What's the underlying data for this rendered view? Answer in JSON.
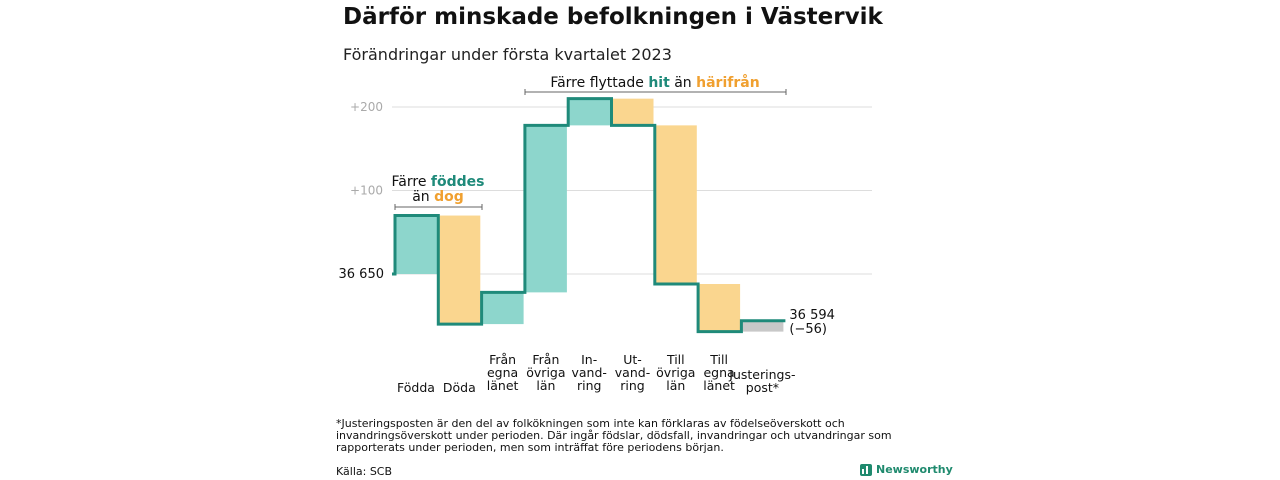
{
  "header": {
    "title": "Därför minskade befolkningen i Västervik",
    "subtitle": "Förändringar under första kvartalet 2023"
  },
  "chart_data": {
    "type": "waterfall",
    "start": {
      "label": "36 650",
      "value": 36650
    },
    "end": {
      "label": "36 594",
      "change_label": "(−56)",
      "value": 36594
    },
    "yticks": [
      {
        "label": "+100",
        "value": 100
      },
      {
        "label": "+200",
        "value": 200
      }
    ],
    "steps": [
      {
        "name": "Födda",
        "label_lines": [
          "Födda"
        ],
        "delta": 70,
        "kind": "in"
      },
      {
        "name": "Döda",
        "label_lines": [
          "Döda"
        ],
        "delta": -130,
        "kind": "out"
      },
      {
        "name": "Från egna länet",
        "label_lines": [
          "Från",
          "egna",
          "länet"
        ],
        "delta": 38,
        "kind": "in"
      },
      {
        "name": "Från övriga län",
        "label_lines": [
          "Från",
          "övriga",
          "län"
        ],
        "delta": 200,
        "kind": "in"
      },
      {
        "name": "Invandring",
        "label_lines": [
          "In-",
          "vand-",
          "ring"
        ],
        "delta": 32,
        "kind": "in"
      },
      {
        "name": "Utvandring",
        "label_lines": [
          "Ut-",
          "vand-",
          "ring"
        ],
        "delta": -32,
        "kind": "out"
      },
      {
        "name": "Till övriga län",
        "label_lines": [
          "Till",
          "övriga",
          "län"
        ],
        "delta": -190,
        "kind": "out"
      },
      {
        "name": "Till egna länet",
        "label_lines": [
          "Till",
          "egna",
          "länet"
        ],
        "delta": -57,
        "kind": "out"
      },
      {
        "name": "Justeringspost*",
        "label_lines": [
          "Justerings-",
          "post*"
        ],
        "delta": 13,
        "kind": "adjust"
      }
    ],
    "annotations": {
      "births": {
        "line1_prefix": "Färre ",
        "line1_em": "föddes",
        "line2_prefix": "än ",
        "line2_em": "dog"
      },
      "migration": {
        "prefix": "Färre flyttade ",
        "em1": "hit",
        "mid": " än ",
        "em2": "härifrån"
      }
    },
    "colors": {
      "in": "#8dd6cc",
      "out": "#fad68f",
      "adjust": "#c8c8c8",
      "line": "#1f8a7a",
      "em_in": "#1f8a7a",
      "em_out": "#f0a030",
      "grid": "#dddddd",
      "tick_text": "#aaaaaa"
    }
  },
  "footer": {
    "footnote": "*Justeringsposten är den del av folkökningen som inte kan förklaras av födelseöverskott och invandringsöverskott under perioden. Där ingår födslar, dödsfall, invandringar och utvandringar som rapporterats under perioden, men som inträffat före periodens början.",
    "source": "Källa: SCB",
    "brand": "Newsworthy"
  }
}
